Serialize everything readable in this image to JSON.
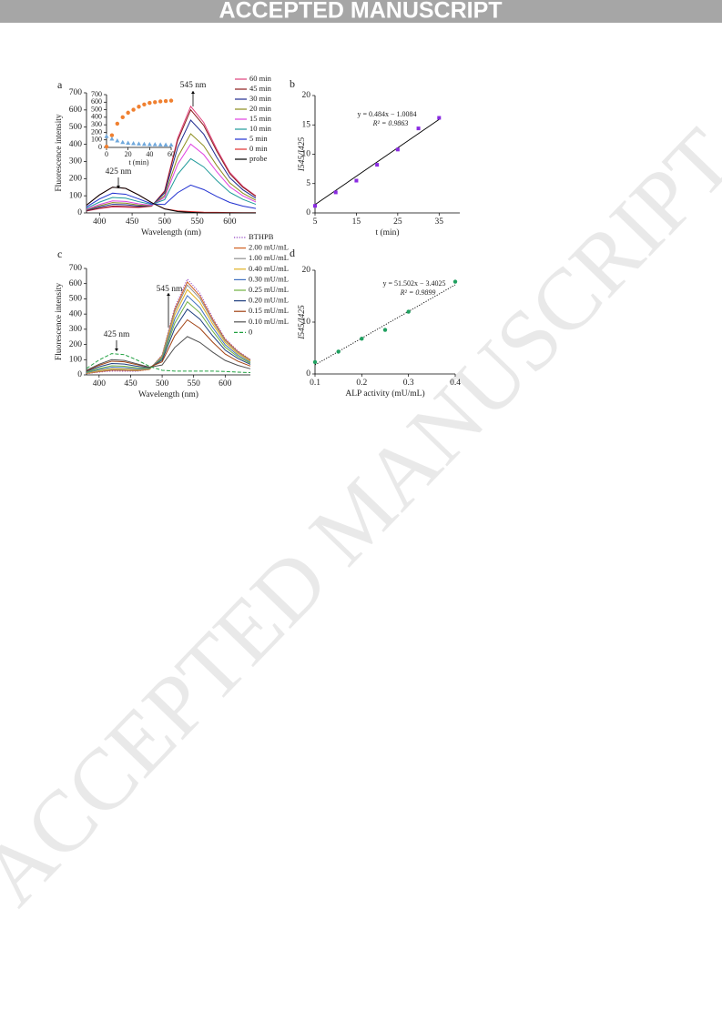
{
  "header": {
    "banner": "ACCEPTED MANUSCRIPT"
  },
  "watermark": "ACCEPTED MANUSCRIPT",
  "chart_data": [
    {
      "type": "line",
      "panel_label": "a",
      "x": [
        380,
        400,
        420,
        440,
        460,
        480,
        500,
        520,
        540,
        560,
        580,
        600,
        620,
        640
      ],
      "series": [
        {
          "name": "60 min",
          "color": "#e0407a",
          "values": [
            11,
            25,
            35,
            33,
            31,
            39,
            129,
            436,
            621,
            527,
            372,
            236,
            155,
            99
          ]
        },
        {
          "name": "45 min",
          "color": "#8b1a1a",
          "values": [
            12,
            28,
            40,
            38,
            34,
            40,
            126,
            422,
            601,
            510,
            360,
            228,
            150,
            96
          ]
        },
        {
          "name": "30 min",
          "color": "#1f2a8f",
          "values": [
            15,
            35,
            50,
            48,
            40,
            42,
            116,
            381,
            541,
            459,
            324,
            205,
            135,
            86
          ]
        },
        {
          "name": "20 min",
          "color": "#8b8b1a",
          "values": [
            18,
            42,
            60,
            57,
            46,
            42,
            101,
            325,
            461,
            391,
            276,
            175,
            115,
            74
          ]
        },
        {
          "name": "15 min",
          "color": "#e040e0",
          "values": [
            21,
            49,
            70,
            67,
            53,
            44,
            91,
            284,
            401,
            340,
            240,
            152,
            100,
            64
          ]
        },
        {
          "name": "10 min",
          "color": "#1f9a9a",
          "values": [
            27,
            63,
            90,
            86,
            66,
            49,
            77,
            225,
            316,
            268,
            189,
            120,
            79,
            50
          ]
        },
        {
          "name": "5 min",
          "color": "#2030d0",
          "values": [
            35,
            81,
            115,
            109,
            82,
            53,
            49,
            118,
            162,
            136,
            96,
            61,
            40,
            26
          ]
        },
        {
          "name": "0 min",
          "color": "#e03030",
          "values": [
            45,
            105,
            150,
            143,
            105,
            60,
            24,
            12,
            8,
            4,
            3,
            2,
            1,
            1
          ]
        },
        {
          "name": "probe",
          "color": "#000000",
          "values": [
            45,
            105,
            150,
            143,
            105,
            60,
            23,
            8,
            3,
            0,
            0,
            0,
            0,
            0
          ]
        }
      ],
      "xlim": [
        380,
        640
      ],
      "xticks": [
        400,
        450,
        500,
        550,
        600
      ],
      "ylim": [
        0,
        700
      ],
      "yticks": [
        0,
        100,
        200,
        300,
        400,
        500,
        600,
        700
      ],
      "xlabel": "Wavelength (nm)",
      "ylabel": "Fluorescence intensity",
      "annotations": [
        "545 nm",
        "425 nm"
      ],
      "inset": {
        "type": "scatter",
        "x": [
          0,
          5,
          10,
          15,
          20,
          25,
          30,
          35,
          40,
          45,
          50,
          55,
          60
        ],
        "series": [
          {
            "color": "#f08030",
            "marker": "circle",
            "values": [
              10,
              160,
              315,
              400,
              460,
              500,
              540,
              570,
              590,
              600,
              610,
              615,
              620
            ]
          },
          {
            "color": "#6fa8dc",
            "marker": "triangle",
            "values": [
              150,
              115,
              90,
              70,
              60,
              55,
              50,
              45,
              42,
              40,
              38,
              36,
              35
            ]
          }
        ],
        "xlim": [
          0,
          60
        ],
        "xticks": [
          0,
          20,
          40,
          60
        ],
        "ylim": [
          0,
          700
        ],
        "yticks": [
          0,
          100,
          200,
          300,
          400,
          500,
          600,
          700
        ],
        "xlabel": "t (min)"
      }
    },
    {
      "type": "scatter",
      "panel_label": "b",
      "x": [
        5,
        10,
        15,
        20,
        25,
        30,
        35
      ],
      "values": [
        1.2,
        3.5,
        5.5,
        8.2,
        10.8,
        14.4,
        16.2
      ],
      "color": "#8a2be2",
      "marker": "square",
      "fit": {
        "x": [
          5,
          35
        ],
        "values": [
          1.41,
          15.93
        ],
        "color": "#000000",
        "style": "solid"
      },
      "equation": "y = 0.484x − 1.0084",
      "r2": "R² = 0.9863",
      "xlim": [
        5,
        40
      ],
      "xticks": [
        5,
        15,
        25,
        35
      ],
      "ylim": [
        0,
        20
      ],
      "yticks": [
        0,
        5,
        10,
        15,
        20
      ],
      "xlabel": "t (min)",
      "ylabel": "I545/I425"
    },
    {
      "type": "line",
      "panel_label": "c",
      "x": [
        380,
        400,
        420,
        440,
        460,
        480,
        500,
        520,
        540,
        560,
        580,
        600,
        620,
        640
      ],
      "series": [
        {
          "name": "BTHPB",
          "color": "#9040c0",
          "style": "dotted",
          "values": [
            8,
            18,
            25,
            24,
            24,
            35,
            131,
            442,
            630,
            536,
            378,
            239,
            158,
            101
          ]
        },
        {
          "name": "2.00 mU/mL",
          "color": "#d06020",
          "values": [
            9,
            21,
            30,
            29,
            27,
            36,
            127,
            429,
            611,
            519,
            366,
            232,
            153,
            98
          ]
        },
        {
          "name": "1.00 mU/mL",
          "color": "#909090",
          "values": [
            11,
            25,
            35,
            33,
            30,
            38,
            123,
            415,
            591,
            502,
            354,
            224,
            148,
            94
          ]
        },
        {
          "name": "0.40 mU/mL",
          "color": "#e0b020",
          "values": [
            12,
            28,
            40,
            38,
            34,
            38,
            118,
            394,
            561,
            476,
            336,
            213,
            140,
            90
          ]
        },
        {
          "name": "0.30 mU/mL",
          "color": "#4070c0",
          "values": [
            15,
            35,
            50,
            48,
            40,
            41,
            112,
            367,
            521,
            442,
            312,
            198,
            130,
            83
          ]
        },
        {
          "name": "0.25 mU/mL",
          "color": "#70b040",
          "values": [
            18,
            42,
            60,
            57,
            47,
            43,
            105,
            339,
            481,
            408,
            288,
            182,
            120,
            77
          ]
        },
        {
          "name": "0.20 mU/mL",
          "color": "#204080",
          "values": [
            23,
            53,
            75,
            71,
            57,
            47,
            97,
            305,
            432,
            366,
            258,
            163,
            108,
            69
          ]
        },
        {
          "name": "0.15 mU/mL",
          "color": "#a04010",
          "values": [
            27,
            63,
            90,
            86,
            67,
            50,
            86,
            257,
            362,
            306,
            216,
            137,
            90,
            58
          ]
        },
        {
          "name": "0.10 mU/mL",
          "color": "#505050",
          "values": [
            30,
            70,
            100,
            95,
            73,
            50,
            65,
            180,
            252,
            213,
            150,
            95,
            63,
            40
          ]
        },
        {
          "name": "0",
          "color": "#20a040",
          "style": "dashed",
          "values": [
            42,
            98,
            140,
            133,
            98,
            56,
            30,
            25,
            25,
            25,
            25,
            22,
            18,
            15
          ]
        }
      ],
      "xlim": [
        380,
        640
      ],
      "xticks": [
        400,
        450,
        500,
        550,
        600
      ],
      "ylim": [
        0,
        700
      ],
      "yticks": [
        0,
        100,
        200,
        300,
        400,
        500,
        600,
        700
      ],
      "xlabel": "Wavelength  (nm)",
      "ylabel": "Fluorescence  intensity",
      "annotations": [
        "545 nm",
        "425 nm"
      ]
    },
    {
      "type": "scatter",
      "panel_label": "d",
      "x": [
        0.1,
        0.15,
        0.2,
        0.25,
        0.3,
        0.4
      ],
      "values": [
        2.3,
        4.3,
        6.8,
        8.5,
        12,
        17.8
      ],
      "color": "#20a060",
      "marker": "circle",
      "fit": {
        "x": [
          0.1,
          0.4
        ],
        "values": [
          1.75,
          17.2
        ],
        "color": "#000000",
        "style": "dotted"
      },
      "equation": "y = 51.502x − 3.4025",
      "r2": "R² = 0.9899",
      "xlim": [
        0.1,
        0.4
      ],
      "xticks": [
        0.1,
        0.2,
        0.3,
        0.4
      ],
      "ylim": [
        0,
        20
      ],
      "yticks": [
        0,
        10,
        20
      ],
      "xlabel": "ALP activity (mU/mL)",
      "ylabel": "I545/I425"
    }
  ]
}
